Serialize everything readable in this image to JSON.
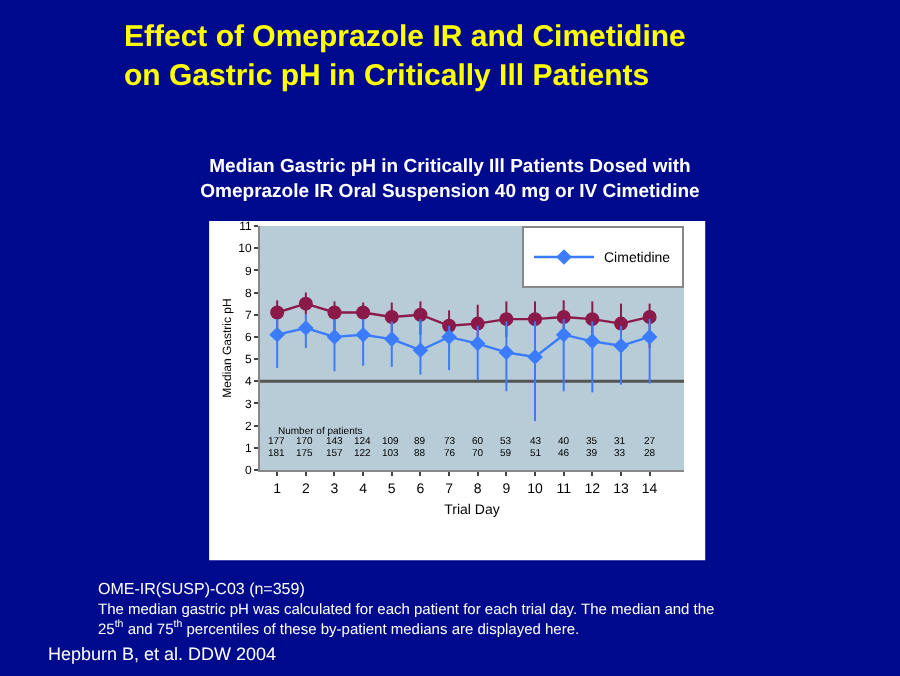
{
  "chart_data": {
    "type": "line",
    "title": "Effect of Omeprazole IR and Cimetidine on Gastric pH in Critically Ill Patients",
    "subtitle": "Median Gastric pH in Critically Ill Patients Dosed with Omeprazole IR Oral Suspension 40 mg or IV Cimetidine",
    "xlabel": "Trial Day",
    "ylabel": "Median Gastric pH",
    "x": [
      1,
      2,
      3,
      4,
      5,
      6,
      7,
      8,
      9,
      10,
      11,
      12,
      13,
      14
    ],
    "xlim": [
      0.4,
      15.2
    ],
    "xticks": [
      1,
      2,
      3,
      4,
      5,
      6,
      7,
      8,
      9,
      10,
      11,
      12,
      13,
      14
    ],
    "ylim": [
      0,
      11
    ],
    "yticks": [
      0,
      1,
      2,
      3,
      4,
      5,
      6,
      7,
      8,
      9,
      10,
      11
    ],
    "series": [
      {
        "color": "#8b1a4a",
        "marker": "circle",
        "values": [
          7.1,
          7.5,
          7.1,
          7.1,
          6.9,
          7.0,
          6.5,
          6.6,
          6.8,
          6.8,
          6.9,
          6.8,
          6.6,
          6.9
        ],
        "errors": [
          [
            5.8,
            7.65
          ],
          [
            7.0,
            8.0
          ],
          [
            6.2,
            7.6
          ],
          [
            6.3,
            7.55
          ],
          [
            6.2,
            7.55
          ],
          [
            6.1,
            7.6
          ],
          [
            6.0,
            7.2
          ],
          [
            6.0,
            7.45
          ],
          [
            6.0,
            7.6
          ],
          [
            6.0,
            7.6
          ],
          [
            6.1,
            7.65
          ],
          [
            6.0,
            7.6
          ],
          [
            6.0,
            7.5
          ],
          [
            5.5,
            7.5
          ]
        ]
      },
      {
        "name": "Cimetidine",
        "color": "#3b7cff",
        "marker": "diamond",
        "values": [
          6.1,
          6.4,
          6.0,
          6.1,
          5.9,
          5.4,
          6.0,
          5.7,
          5.3,
          5.1,
          6.1,
          5.8,
          5.6,
          6.0
        ],
        "errors": [
          [
            4.6,
            6.8
          ],
          [
            5.5,
            7.0
          ],
          [
            4.45,
            6.8
          ],
          [
            4.7,
            6.8
          ],
          [
            4.65,
            6.7
          ],
          [
            4.3,
            6.8
          ],
          [
            4.5,
            6.5
          ],
          [
            4.05,
            6.5
          ],
          [
            3.55,
            6.7
          ],
          [
            2.2,
            6.7
          ],
          [
            3.55,
            6.8
          ],
          [
            3.5,
            6.7
          ],
          [
            3.85,
            6.5
          ],
          [
            3.9,
            6.8
          ]
        ]
      }
    ],
    "ref_lines": [
      {
        "axis": "y",
        "value": 4,
        "color": "#555555"
      }
    ],
    "legend": "top right",
    "grid": false,
    "annotations": [
      "Number of patients",
      "177 170 143 124 109 89 73 60 53 43 40 35 31 27",
      "181 175 157 122 103 88 76 70 59 51 46 39 33 28",
      "OME-IR(SUSP)-C03 (n=359)",
      "The median gastric pH was calculated for each patient for each trial day. The median and the 25$^{th}$ and 75$^{th}$ percentiles of these by-patient medians are displayed here.",
      "Hepburn B, et al. DDW 2004"
    ]
  }
}
